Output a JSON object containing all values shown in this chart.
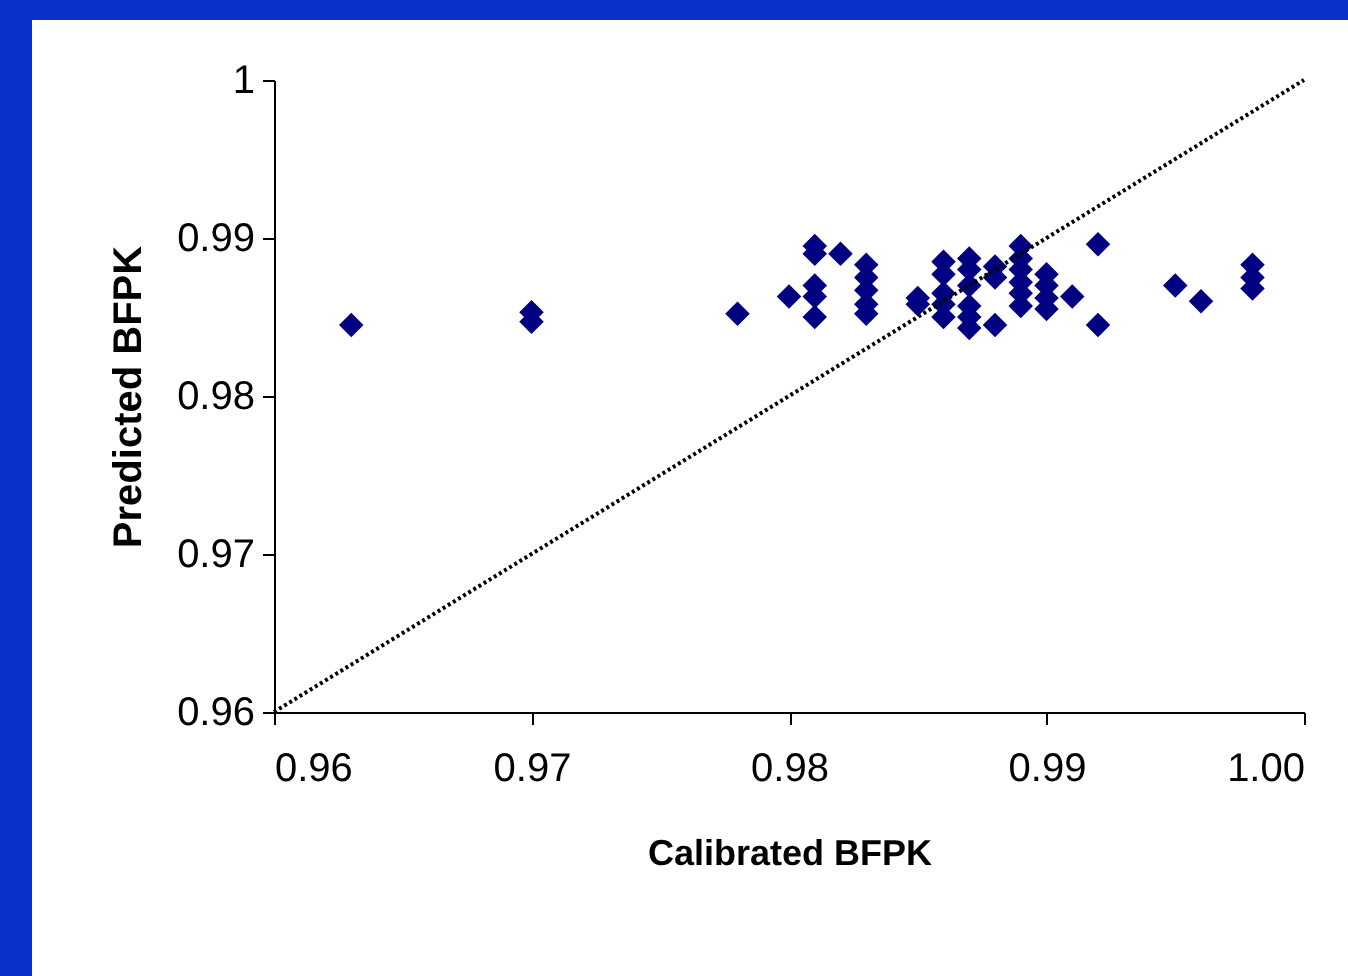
{
  "chart_data": {
    "type": "scatter",
    "xlabel": "Calibrated BFPK",
    "ylabel": "Predicted BFPK",
    "xlim": [
      0.96,
      1.0
    ],
    "ylim": [
      0.96,
      1.0
    ],
    "xticks": [
      0.96,
      0.97,
      0.98,
      0.99,
      {
        "value": 1.0,
        "label": "1.00"
      }
    ],
    "yticks": [
      0.96,
      0.97,
      0.98,
      0.99,
      1
    ],
    "grid": false,
    "marker": "diamond",
    "series": [
      {
        "color": "#000080",
        "x": [
          0.963,
          0.97,
          0.97,
          0.978,
          0.98,
          0.981,
          0.981,
          0.981,
          0.981,
          0.981,
          0.982,
          0.983,
          0.983,
          0.983,
          0.983,
          0.983,
          0.985,
          0.985,
          0.986,
          0.986,
          0.986,
          0.986,
          0.986,
          0.987,
          0.987,
          0.987,
          0.987,
          0.987,
          0.987,
          0.988,
          0.988,
          0.988,
          0.989,
          0.989,
          0.989,
          0.989,
          0.989,
          0.989,
          0.99,
          0.99,
          0.99,
          0.99,
          0.991,
          0.992,
          0.992,
          0.995,
          0.996,
          0.998,
          0.998,
          0.998
        ],
        "values": [
          0.9845,
          0.9853,
          0.9847,
          0.9852,
          0.9863,
          0.9895,
          0.989,
          0.987,
          0.9863,
          0.985,
          0.989,
          0.9883,
          0.9875,
          0.9867,
          0.9858,
          0.9852,
          0.9862,
          0.9858,
          0.9885,
          0.9877,
          0.9865,
          0.9858,
          0.985,
          0.9887,
          0.988,
          0.987,
          0.9857,
          0.985,
          0.9843,
          0.9882,
          0.9875,
          0.9845,
          0.9895,
          0.9887,
          0.988,
          0.9872,
          0.9865,
          0.9857,
          0.9877,
          0.987,
          0.9862,
          0.9855,
          0.9863,
          0.9896,
          0.9845,
          0.987,
          0.986,
          0.9883,
          0.9875,
          0.9868
        ]
      },
      {
        "type": "line",
        "color": "#000000",
        "line_style": "dotted",
        "marker": "none",
        "x": [
          0.96,
          1.0
        ],
        "values": [
          0.96,
          1.0
        ]
      }
    ]
  }
}
